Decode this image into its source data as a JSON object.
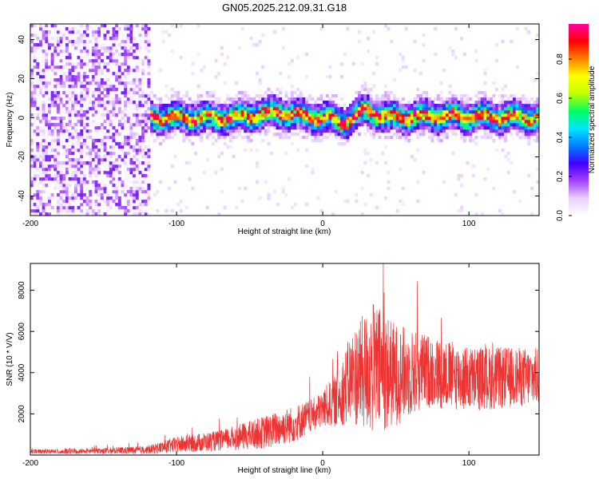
{
  "title": "GN05.2025.212.09.31.G18",
  "colors": {
    "snr_line": "#ee3333",
    "colormap": [
      "#ffffff",
      "#e8d0ff",
      "#a040ff",
      "#4000ff",
      "#0080ff",
      "#00e5ff",
      "#00ff60",
      "#c0ff00",
      "#ffff00",
      "#ff8000",
      "#ff0000",
      "#ff00a0"
    ]
  },
  "chart_data": [
    {
      "type": "heatmap",
      "name": "spectrogram",
      "xlabel": "Height of straight line (km)",
      "ylabel": "Frequency (Hz)",
      "xlim": [
        -200,
        148
      ],
      "ylim": [
        -50,
        48
      ],
      "xticks": [
        "-200",
        "-100",
        "0",
        "100"
      ],
      "xtick_values": [
        -200,
        -100,
        0,
        100
      ],
      "yticks": [
        "-40",
        "-20",
        "0",
        "20",
        "40"
      ],
      "ytick_values": [
        -40,
        -20,
        0,
        20,
        40
      ],
      "colorbar": {
        "label": "Normalized spectral amplitude",
        "range": [
          0.0,
          0.98
        ],
        "ticks": [
          "0.0",
          "0.2",
          "0.4",
          "0.6",
          "0.8"
        ],
        "tick_values": [
          0.0,
          0.2,
          0.4,
          0.6,
          0.8
        ]
      },
      "noise_region_x": [
        -200,
        -118
      ],
      "band_center_hz": [
        {
          "x": -118,
          "y": 0
        },
        {
          "x": -60,
          "y": 0
        },
        {
          "x": -30,
          "y": 3
        },
        {
          "x": -15,
          "y": 1
        },
        {
          "x": 0,
          "y": 0
        },
        {
          "x": 15,
          "y": -2
        },
        {
          "x": 30,
          "y": 4
        },
        {
          "x": 45,
          "y": 0
        },
        {
          "x": 80,
          "y": 1
        },
        {
          "x": 148,
          "y": 0
        }
      ],
      "grid": false
    },
    {
      "type": "line",
      "name": "snr",
      "xlabel": "Height of straight line (km)",
      "ylabel": "SNR (10 * V/V)",
      "xlim": [
        -200,
        148
      ],
      "ylim": [
        0,
        9300
      ],
      "xticks": [
        "-200",
        "-100",
        "0",
        "100"
      ],
      "xtick_values": [
        -200,
        -100,
        0,
        100
      ],
      "yticks": [
        "2000",
        "4000",
        "6000",
        "8000"
      ],
      "ytick_values": [
        2000,
        4000,
        6000,
        8000
      ],
      "envelope": [
        {
          "x": -200,
          "mean": 150,
          "spread": 120
        },
        {
          "x": -150,
          "mean": 200,
          "spread": 150
        },
        {
          "x": -120,
          "mean": 250,
          "spread": 200
        },
        {
          "x": -100,
          "mean": 500,
          "spread": 400
        },
        {
          "x": -70,
          "mean": 700,
          "spread": 500
        },
        {
          "x": -40,
          "mean": 1100,
          "spread": 800
        },
        {
          "x": -20,
          "mean": 1500,
          "spread": 900
        },
        {
          "x": -5,
          "mean": 2000,
          "spread": 800
        },
        {
          "x": 10,
          "mean": 2700,
          "spread": 1300
        },
        {
          "x": 20,
          "mean": 3800,
          "spread": 2300
        },
        {
          "x": 35,
          "mean": 4200,
          "spread": 3300
        },
        {
          "x": 50,
          "mean": 3900,
          "spread": 2500
        },
        {
          "x": 70,
          "mean": 4100,
          "spread": 1800
        },
        {
          "x": 100,
          "mean": 3700,
          "spread": 1600
        },
        {
          "x": 148,
          "mean": 3800,
          "spread": 1400
        }
      ],
      "grid": false
    }
  ]
}
